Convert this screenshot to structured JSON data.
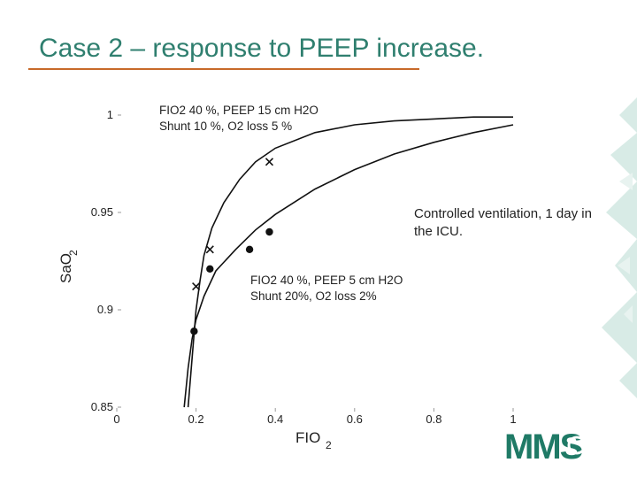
{
  "slide": {
    "title": "Case 2 – response to PEEP increase."
  },
  "annotations": {
    "upper_line1": "FIO2  40 %, PEEP 15 cm H2O",
    "upper_line2": "Shunt  10 %, O2 loss  5 %",
    "lower_line1": "FIO2  40 %, PEEP 5 cm H2O",
    "lower_line2": "Shunt  20%, O2 loss 2%",
    "context_line1": "Controlled ventilation, 1 day in",
    "context_line2": "the ICU."
  },
  "logo": {
    "text": "MMS"
  },
  "colors": {
    "title": "#2f7f6f",
    "title_rule": "#c86a2a",
    "accent": "#d8ebe6",
    "logo": "#1f7a66"
  },
  "chart_data": {
    "type": "line",
    "xlabel": "FIO",
    "xlabel_sub": "2",
    "ylabel": "SaO",
    "ylabel_sub": "2",
    "xlim": [
      0,
      1
    ],
    "ylim": [
      0.85,
      1.0
    ],
    "x_ticks": [
      "0",
      "0.2",
      "0.4",
      "0.6",
      "0.8",
      "1"
    ],
    "x_tick_values": [
      0,
      0.2,
      0.4,
      0.6,
      0.8,
      1.0
    ],
    "y_ticks": [
      "0.85",
      "0.9",
      "0.95",
      "1"
    ],
    "y_tick_values": [
      0.85,
      0.9,
      0.95,
      1.0
    ],
    "grid": false,
    "series": [
      {
        "marker": "x",
        "curve": [
          [
            0.18,
            0.85
          ],
          [
            0.19,
            0.875
          ],
          [
            0.2,
            0.9
          ],
          [
            0.21,
            0.915
          ],
          [
            0.22,
            0.928
          ],
          [
            0.24,
            0.942
          ],
          [
            0.27,
            0.955
          ],
          [
            0.31,
            0.967
          ],
          [
            0.35,
            0.976
          ],
          [
            0.4,
            0.983
          ],
          [
            0.5,
            0.991
          ],
          [
            0.6,
            0.995
          ],
          [
            0.7,
            0.997
          ],
          [
            0.8,
            0.998
          ],
          [
            0.9,
            0.999
          ],
          [
            1.0,
            0.999
          ]
        ],
        "points": [
          {
            "x": 0.2,
            "y": 0.912
          },
          {
            "x": 0.235,
            "y": 0.931
          },
          {
            "x": 0.385,
            "y": 0.976
          }
        ]
      },
      {
        "marker": "dot",
        "curve": [
          [
            0.17,
            0.85
          ],
          [
            0.18,
            0.87
          ],
          [
            0.19,
            0.885
          ],
          [
            0.2,
            0.895
          ],
          [
            0.22,
            0.907
          ],
          [
            0.25,
            0.92
          ],
          [
            0.3,
            0.931
          ],
          [
            0.35,
            0.941
          ],
          [
            0.4,
            0.949
          ],
          [
            0.5,
            0.962
          ],
          [
            0.6,
            0.972
          ],
          [
            0.7,
            0.98
          ],
          [
            0.8,
            0.986
          ],
          [
            0.9,
            0.991
          ],
          [
            1.0,
            0.995
          ]
        ],
        "points": [
          {
            "x": 0.195,
            "y": 0.889
          },
          {
            "x": 0.235,
            "y": 0.921
          },
          {
            "x": 0.335,
            "y": 0.931
          },
          {
            "x": 0.385,
            "y": 0.94
          }
        ]
      }
    ]
  }
}
